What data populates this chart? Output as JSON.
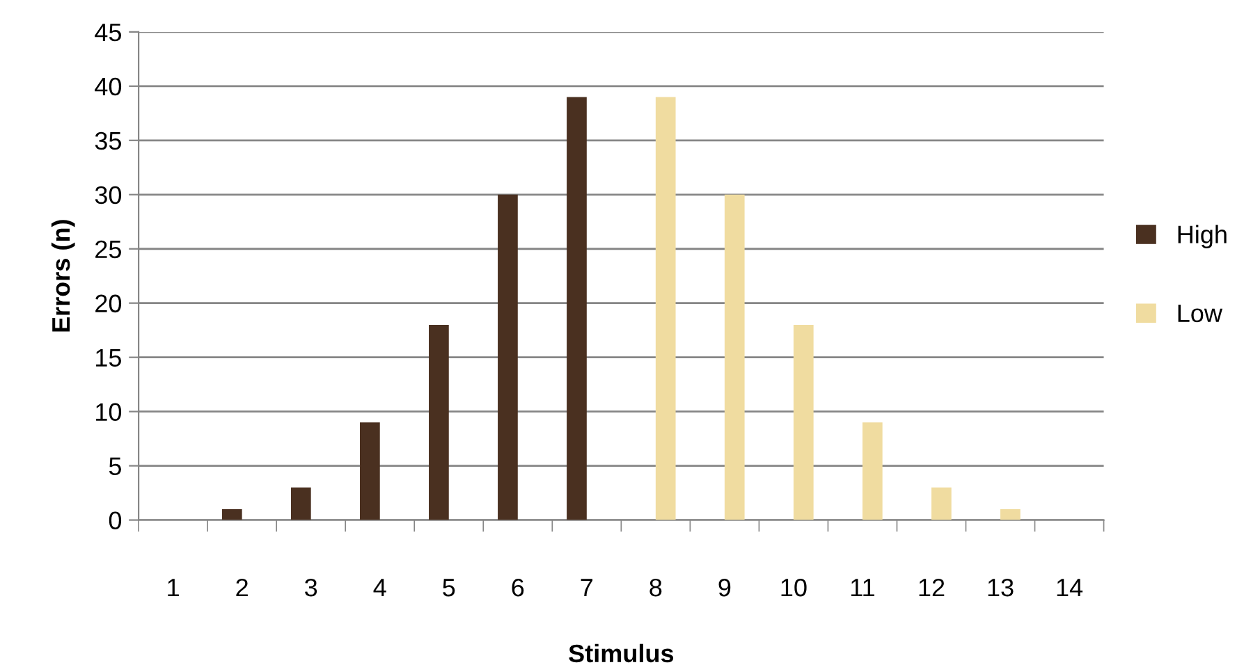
{
  "chart_data": {
    "type": "bar",
    "xlabel": "Stimulus",
    "ylabel": "Errors (n)",
    "categories": [
      "1",
      "2",
      "3",
      "4",
      "5",
      "6",
      "7",
      "8",
      "9",
      "10",
      "11",
      "12",
      "13",
      "14"
    ],
    "series": [
      {
        "name": "High",
        "color": "#4a3020",
        "values": [
          null,
          1,
          3,
          9,
          18,
          30,
          39,
          null,
          null,
          null,
          null,
          null,
          null,
          null
        ]
      },
      {
        "name": "Low",
        "color": "#f0dca0",
        "values": [
          null,
          null,
          null,
          null,
          null,
          null,
          null,
          39,
          30,
          18,
          9,
          3,
          1,
          null
        ]
      }
    ],
    "ylim": [
      0,
      45
    ],
    "yticks": [
      0,
      5,
      10,
      15,
      20,
      25,
      30,
      35,
      40,
      45
    ],
    "grid": "y",
    "legend": "right"
  }
}
